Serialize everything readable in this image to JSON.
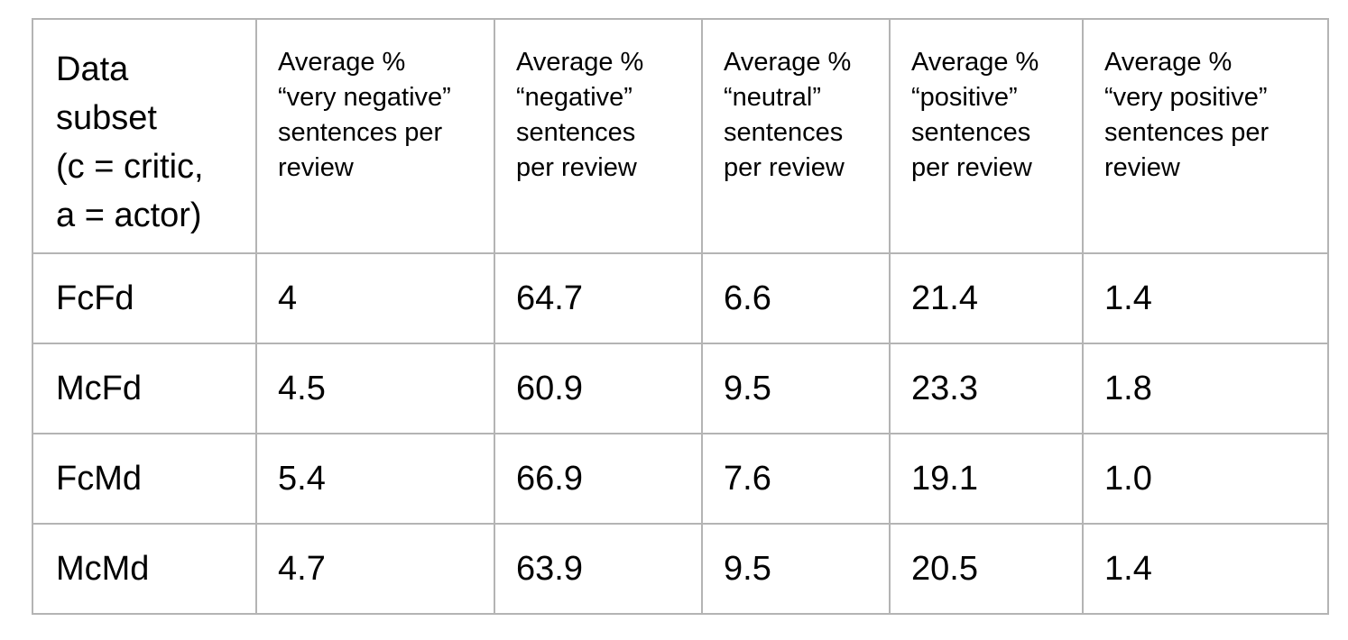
{
  "table": {
    "headers": [
      "Data\nsubset\n(c = critic,\na = actor)",
      "Average %\n“very negative”\nsentences per\nreview",
      "Average %\n“negative”\nsentences\nper review",
      "Average %\n“neutral”\nsentences\nper review",
      "Average %\n“positive”\nsentences\nper review",
      "Average %\n“very positive”\nsentences per\nreview"
    ],
    "rows": [
      [
        "FcFd",
        "4",
        "64.7",
        "6.6",
        "21.4",
        "1.4"
      ],
      [
        "McFd",
        "4.5",
        "60.9",
        "9.5",
        "23.3",
        "1.8"
      ],
      [
        "FcMd",
        "5.4",
        "66.9",
        "7.6",
        "19.1",
        "1.0"
      ],
      [
        "McMd",
        "4.7",
        "63.9",
        "9.5",
        "20.5",
        "1.4"
      ]
    ]
  }
}
